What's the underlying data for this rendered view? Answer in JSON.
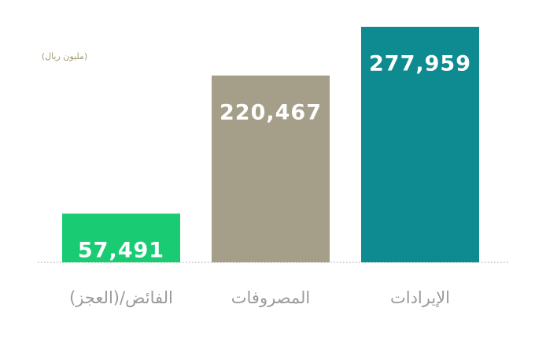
{
  "chart_data": {
    "type": "bar",
    "unit_label": "(مليون ريال)",
    "categories": [
      "الإيرادات",
      "المصروفات",
      "الفائض/(العجز)"
    ],
    "values": [
      277959,
      220467,
      57491
    ],
    "value_labels": [
      "277,959",
      "220,467",
      "57,491"
    ],
    "colors": [
      "#0e8a91",
      "#a59e88",
      "#19cc74"
    ]
  }
}
